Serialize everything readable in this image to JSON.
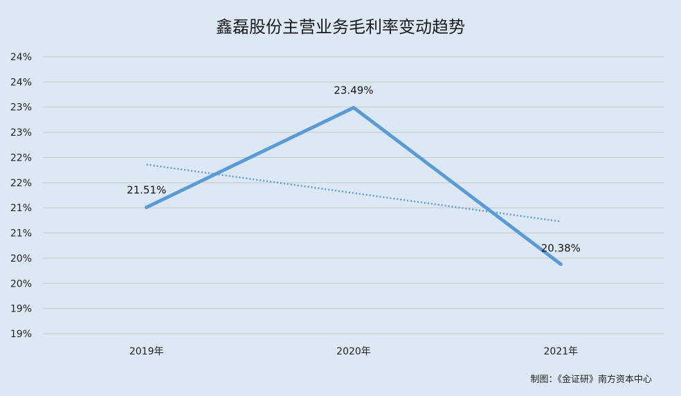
{
  "chart_data": {
    "type": "line",
    "title": "鑫磊股份主营业务毛利率变动趋势",
    "categories": [
      "2019年",
      "2020年",
      "2021年"
    ],
    "series": [
      {
        "values": [
          21.51,
          23.49,
          20.38
        ],
        "data_labels": [
          "21.51%",
          "23.49%",
          "20.38%"
        ],
        "color": "#5b9bd5"
      }
    ],
    "trendline": {
      "type": "linear",
      "style": "dotted",
      "color": "#5b9bd5"
    },
    "y_ticks": [
      "19%",
      "19%",
      "20%",
      "20%",
      "21%",
      "21%",
      "22%",
      "22%",
      "23%",
      "23%",
      "24%",
      "24%"
    ],
    "ylim": [
      19,
      24.5
    ],
    "grid": true,
    "legend": "none"
  },
  "credit": "制图：《金证研》南方资本中心"
}
